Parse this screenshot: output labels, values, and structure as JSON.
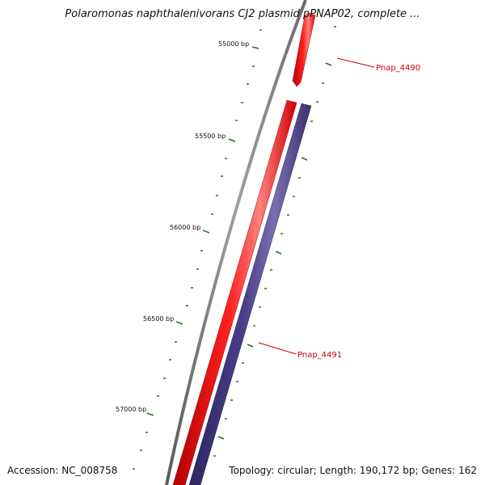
{
  "header": {
    "title": "Polaromonas naphthalenivorans CJ2 plasmid pPNAP02, complete ..."
  },
  "footer": {
    "accession": "Accession: NC_008758",
    "summary": "Topology: circular; Length: 190,172 bp; Genes: 162"
  },
  "scale": {
    "labels": [
      "55000 bp",
      "55500 bp",
      "56000 bp",
      "56500 bp",
      "57000 bp"
    ]
  },
  "genes": [
    {
      "id": "Pnap_4490",
      "label": "Pnap_4490",
      "strand": "forward"
    },
    {
      "id": "Pnap_4491",
      "label": "Pnap_4491",
      "strand": "forward"
    }
  ],
  "colors": {
    "backbone": "#808080",
    "gene_forward": "#ff0000",
    "gene_alt": "#4a3f8a",
    "ticks": "#1a7a1a",
    "label": "#cc0000"
  }
}
